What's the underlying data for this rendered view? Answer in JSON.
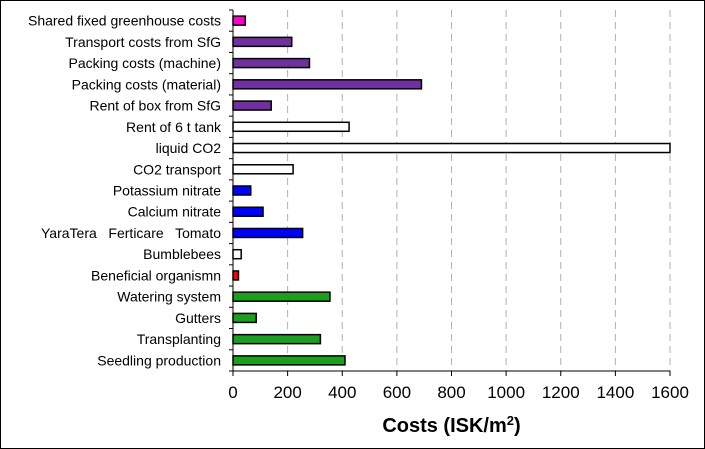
{
  "chart_data": {
    "type": "bar",
    "orientation": "horizontal",
    "title": "",
    "xlabel": "Costs (ISK/m",
    "xlabel_superscript": "2",
    "xlabel_suffix": ")",
    "ylabel": "",
    "xlim": [
      0,
      1600
    ],
    "xticks": [
      0,
      200,
      400,
      600,
      800,
      1000,
      1200,
      1400,
      1600
    ],
    "grid": "vertical-dashed",
    "legend": "none",
    "categories": [
      "Shared fixed greenhouse costs",
      "Transport costs from SfG",
      "Packing costs (machine)",
      "Packing costs (material)",
      "Rent of box from SfG",
      "Rent of 6 t tank",
      "liquid CO2",
      "CO2 transport",
      "Potassium nitrate",
      "Calcium nitrate",
      "YaraTera   Ferticare   Tomato",
      "Bumblebees",
      "Beneficial organismn",
      "Watering system",
      "Gutters",
      "Transplanting",
      "Seedling production"
    ],
    "values": [
      45,
      215,
      280,
      690,
      140,
      425,
      1600,
      220,
      65,
      110,
      255,
      30,
      20,
      355,
      85,
      320,
      410
    ],
    "bar_colors": [
      "#ff00cc",
      "#7030a0",
      "#7030a0",
      "#7030a0",
      "#7030a0",
      "#ffffff",
      "#ffffff",
      "#ffffff",
      "#0000ff",
      "#0000ff",
      "#0000ff",
      "#ffffff",
      "#ff0000",
      "#1e9e1e",
      "#1e9e1e",
      "#1e9e1e",
      "#1e9e1e"
    ]
  }
}
